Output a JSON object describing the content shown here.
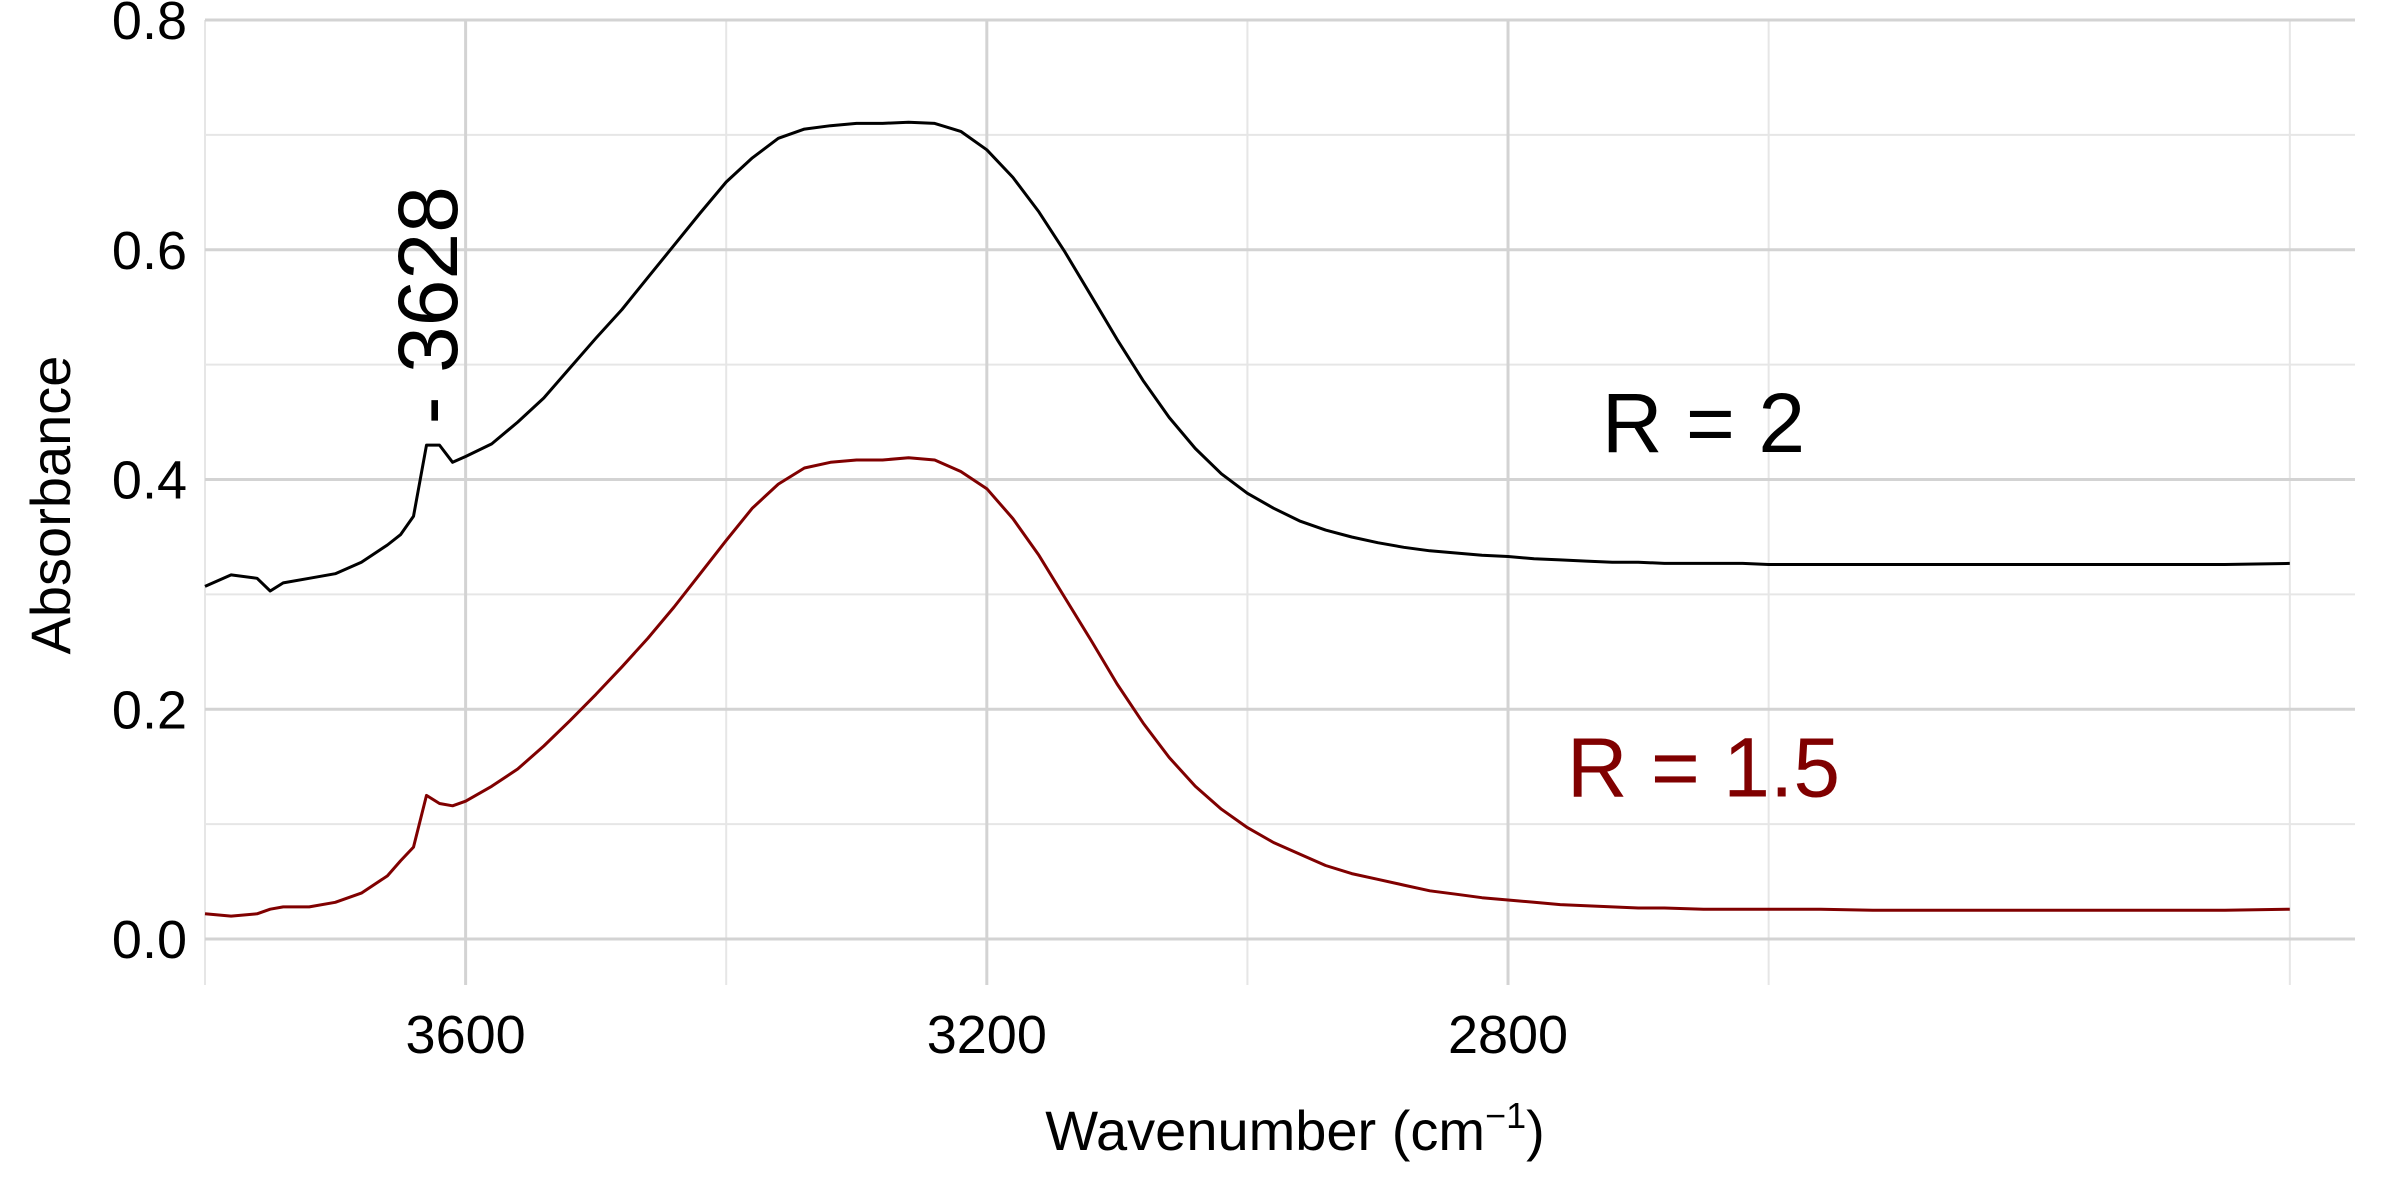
{
  "chart_data": {
    "type": "line",
    "title": "",
    "xlabel": "Wavenumber (cm",
    "xlabel_sup": "−1",
    "xlabel_close": ")",
    "ylabel": "Absorbance",
    "xlim": [
      3800,
      2150
    ],
    "x_reversed": true,
    "ylim": [
      -0.04,
      0.8
    ],
    "x_ticks": [
      3600,
      3200,
      2800
    ],
    "x_tick_labels": [
      "3600",
      "3200",
      "2800"
    ],
    "y_ticks": [
      0.0,
      0.2,
      0.4,
      0.6,
      0.8
    ],
    "y_tick_labels": [
      "0.0",
      "0.2",
      "0.4",
      "0.6",
      "0.8"
    ],
    "grid": true,
    "legend": "none",
    "series": [
      {
        "name": "R = 2",
        "color": "#000000",
        "x": [
          3800,
          3780,
          3760,
          3750,
          3740,
          3720,
          3700,
          3680,
          3660,
          3650,
          3640,
          3630,
          3620,
          3610,
          3600,
          3580,
          3560,
          3540,
          3520,
          3500,
          3480,
          3460,
          3440,
          3420,
          3400,
          3380,
          3360,
          3340,
          3320,
          3300,
          3280,
          3260,
          3240,
          3220,
          3200,
          3180,
          3160,
          3140,
          3120,
          3100,
          3080,
          3060,
          3040,
          3020,
          3000,
          2980,
          2960,
          2940,
          2920,
          2900,
          2880,
          2860,
          2840,
          2820,
          2800,
          2780,
          2760,
          2740,
          2720,
          2700,
          2680,
          2650,
          2620,
          2600,
          2560,
          2520,
          2500,
          2450,
          2400,
          2350,
          2300,
          2250,
          2200
        ],
        "y": [
          0.307,
          0.317,
          0.314,
          0.303,
          0.31,
          0.314,
          0.318,
          0.328,
          0.343,
          0.352,
          0.368,
          0.43,
          0.43,
          0.415,
          0.42,
          0.431,
          0.45,
          0.471,
          0.497,
          0.523,
          0.548,
          0.576,
          0.604,
          0.632,
          0.659,
          0.68,
          0.697,
          0.705,
          0.708,
          0.71,
          0.71,
          0.711,
          0.71,
          0.703,
          0.687,
          0.663,
          0.633,
          0.598,
          0.56,
          0.522,
          0.486,
          0.454,
          0.427,
          0.405,
          0.388,
          0.375,
          0.364,
          0.356,
          0.35,
          0.345,
          0.341,
          0.338,
          0.336,
          0.334,
          0.333,
          0.331,
          0.33,
          0.329,
          0.328,
          0.328,
          0.327,
          0.327,
          0.327,
          0.326,
          0.326,
          0.326,
          0.326,
          0.326,
          0.326,
          0.326,
          0.326,
          0.326,
          0.327
        ]
      },
      {
        "name": "R = 1.5",
        "color": "#800000",
        "x": [
          3800,
          3780,
          3760,
          3750,
          3740,
          3720,
          3700,
          3680,
          3660,
          3650,
          3640,
          3630,
          3620,
          3610,
          3600,
          3580,
          3560,
          3540,
          3520,
          3500,
          3480,
          3460,
          3440,
          3420,
          3400,
          3380,
          3360,
          3340,
          3320,
          3300,
          3280,
          3260,
          3240,
          3220,
          3200,
          3180,
          3160,
          3140,
          3120,
          3100,
          3080,
          3060,
          3040,
          3020,
          3000,
          2980,
          2960,
          2940,
          2920,
          2900,
          2880,
          2860,
          2840,
          2820,
          2800,
          2780,
          2760,
          2740,
          2720,
          2700,
          2680,
          2650,
          2620,
          2600,
          2560,
          2520,
          2500,
          2450,
          2400,
          2350,
          2300,
          2250,
          2200
        ],
        "y": [
          0.022,
          0.02,
          0.022,
          0.026,
          0.028,
          0.028,
          0.032,
          0.04,
          0.055,
          0.068,
          0.08,
          0.125,
          0.118,
          0.116,
          0.12,
          0.133,
          0.148,
          0.168,
          0.19,
          0.213,
          0.237,
          0.262,
          0.289,
          0.318,
          0.347,
          0.375,
          0.396,
          0.41,
          0.415,
          0.417,
          0.417,
          0.419,
          0.417,
          0.407,
          0.392,
          0.366,
          0.334,
          0.297,
          0.26,
          0.222,
          0.188,
          0.158,
          0.133,
          0.113,
          0.097,
          0.084,
          0.074,
          0.064,
          0.057,
          0.052,
          0.047,
          0.042,
          0.039,
          0.036,
          0.034,
          0.032,
          0.03,
          0.029,
          0.028,
          0.027,
          0.027,
          0.026,
          0.026,
          0.026,
          0.026,
          0.025,
          0.025,
          0.025,
          0.025,
          0.025,
          0.025,
          0.025,
          0.026
        ]
      }
    ],
    "annotations": [
      {
        "text": "3628",
        "x": 3628,
        "y": 0.435,
        "rotation": -90,
        "color": "#000000"
      },
      {
        "text": "R = 2",
        "x": 2650,
        "y": 0.45,
        "color": "#000000"
      },
      {
        "text": "R = 1.5",
        "x": 2650,
        "y": 0.15,
        "color": "#800000"
      }
    ]
  }
}
